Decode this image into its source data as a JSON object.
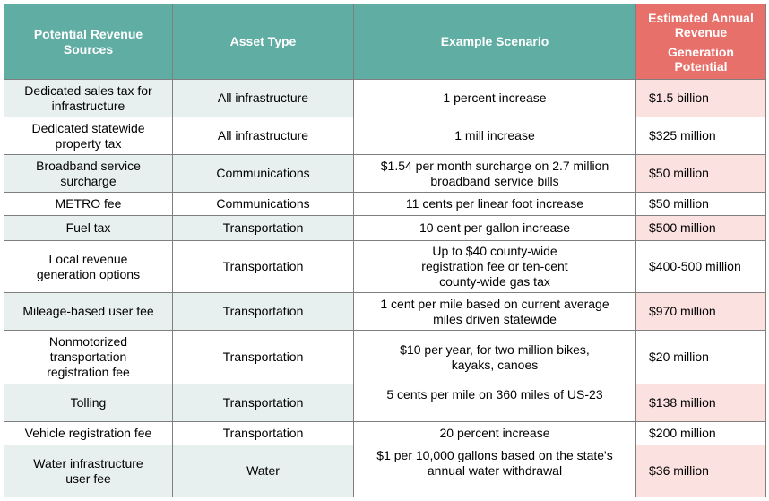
{
  "headers": {
    "source": "Potential Revenue Sources",
    "asset_type": "Asset Type",
    "scenario": "Example Scenario",
    "revenue_line1": "Estimated Annual Revenue",
    "revenue_line2": "Generation Potential"
  },
  "colors": {
    "header_teal": "#5fada3",
    "header_salmon": "#e8706a",
    "row_teal_tint": "#e7f0ef",
    "row_pink_tint": "#fbe1e0"
  },
  "rows": [
    {
      "source": "Dedicated sales tax for\ninfrastructure",
      "asset": "All infrastructure",
      "scenario": "1 percent increase",
      "revenue": "$1.5 billion"
    },
    {
      "source": "Dedicated statewide\nproperty tax",
      "asset": "All infrastructure",
      "scenario": "1 mill increase",
      "revenue": "$325 million"
    },
    {
      "source": "Broadband service\nsurcharge",
      "asset": "Communications",
      "scenario": "$1.54 per month surcharge on 2.7 million\nbroadband  service bills",
      "revenue": "$50 million"
    },
    {
      "source": "METRO fee",
      "asset": "Communications",
      "scenario": "11 cents per linear foot increase",
      "revenue": "$50 million"
    },
    {
      "source": "Fuel tax",
      "asset": "Transportation",
      "scenario": "10 cent per gallon increase",
      "revenue": "$500  million"
    },
    {
      "source": "Local revenue\ngeneration  options",
      "asset": "Transportation",
      "scenario": "Up to $40 county-wide\nregistration  fee or ten-cent\ncounty-wide gas tax",
      "revenue": "$400-500  million"
    },
    {
      "source": "Mileage-based  user fee",
      "asset": "Transportation",
      "scenario": "1 cent per mile based on current average\nmiles driven statewide",
      "revenue": "$970 million"
    },
    {
      "source": "Nonmotorized\ntransportation\nregistration  fee",
      "asset": "Transportation",
      "scenario": "$10 per year, for two million bikes,\nkayaks, canoes",
      "revenue": "$20 million"
    },
    {
      "source": "Tolling",
      "asset": "Transportation",
      "scenario": "5 cents per mile on 360 miles of US-23",
      "revenue": "$138 million"
    },
    {
      "source": "Vehicle registration  fee",
      "asset": "Transportation",
      "scenario": "20 percent increase",
      "revenue": "$200 million"
    },
    {
      "source": "Water infrastructure\nuser fee",
      "asset": "Water",
      "scenario": "$1 per 10,000 gallons based on the state's\nannual water withdrawal",
      "revenue": "$36 million"
    }
  ]
}
